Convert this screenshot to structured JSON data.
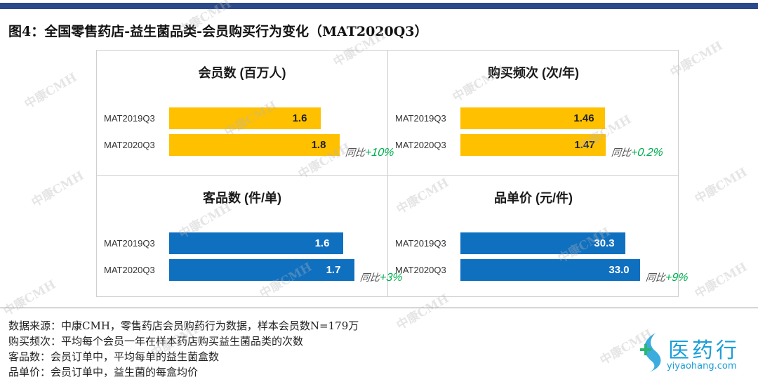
{
  "title": "图4：全国零售药店-益生菌品类-会员购买行为变化（MAT2020Q3）",
  "chart_data": [
    {
      "type": "bar",
      "title": "会员数 (百万人)",
      "categories": [
        "MAT2019Q3",
        "MAT2020Q3"
      ],
      "values": [
        1.6,
        1.8
      ],
      "value_labels": [
        "1.6",
        "1.8"
      ],
      "color": "#ffc000",
      "yoy_label": "同比",
      "yoy_value": "+10%"
    },
    {
      "type": "bar",
      "title": "购买频次 (次/年)",
      "categories": [
        "MAT2019Q3",
        "MAT2020Q3"
      ],
      "values": [
        1.46,
        1.47
      ],
      "value_labels": [
        "1.46",
        "1.47"
      ],
      "color": "#ffc000",
      "yoy_label": "同比",
      "yoy_value": "+0.2%"
    },
    {
      "type": "bar",
      "title": "客品数 (件/单)",
      "categories": [
        "MAT2019Q3",
        "MAT2020Q3"
      ],
      "values": [
        1.6,
        1.7
      ],
      "value_labels": [
        "1.6",
        "1.7"
      ],
      "color": "#1070c0",
      "yoy_label": "同比",
      "yoy_value": "+3%"
    },
    {
      "type": "bar",
      "title": "品单价 (元/件)",
      "categories": [
        "MAT2019Q3",
        "MAT2020Q3"
      ],
      "values": [
        30.3,
        33.0
      ],
      "value_labels": [
        "30.3",
        "33.0"
      ],
      "color": "#1070c0",
      "yoy_label": "同比",
      "yoy_value": "+9%"
    }
  ],
  "notes": [
    "数据来源：中康CMH，零售药店会员购药行为数据，样本会员数N=179万",
    "购买频次：平均每个会员一年在样本药店购买益生菌品类的次数",
    "客品数：会员订单中，平均每单的益生菌盒数",
    "品单价：会员订单中，益生菌的每盒均价"
  ],
  "watermark": "中康CMH",
  "logo": {
    "name": "医药行",
    "url": "yiyaohang.com"
  }
}
